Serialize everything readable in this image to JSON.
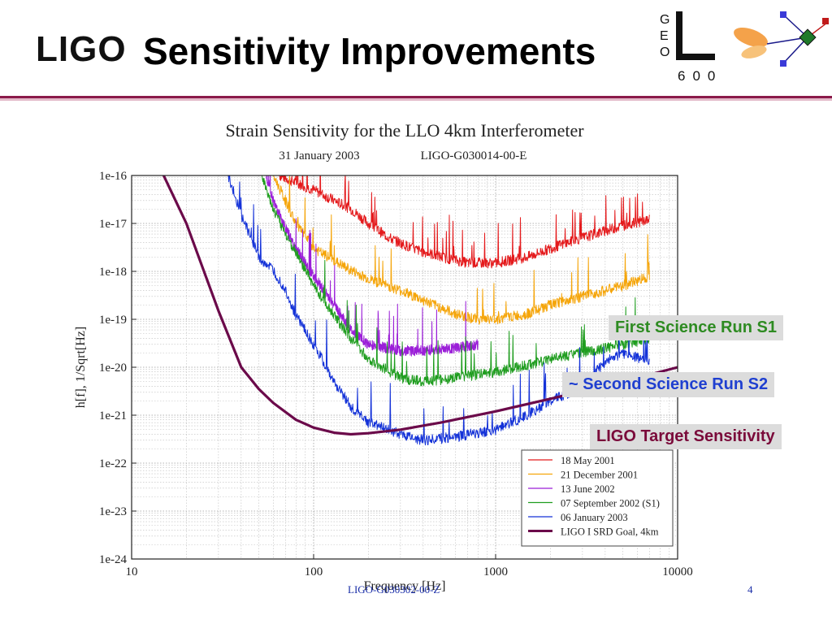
{
  "header": {
    "logo_text": "LIGO",
    "title": "Sensitivity Improvements",
    "geo_letters": [
      "G",
      "E",
      "O"
    ],
    "geo_number": "600"
  },
  "callouts": {
    "s1": "First Science Run S1",
    "s2": "~ Second Science Run S2",
    "target": "LIGO Target Sensitivity"
  },
  "footer": {
    "doc_id": "LIGO-G030302-00-Z",
    "page_number": "4"
  },
  "colors": {
    "header_rule": "#8b1a4a",
    "callout_s1": "#2e8b22",
    "callout_s2": "#1f3fd0",
    "callout_target": "#7a0a3a"
  },
  "chart_data": {
    "type": "line",
    "title": "Strain Sensitivity for the LLO 4km Interferometer",
    "subtitle_date": "31 January 2003",
    "subtitle_doc": "LIGO-G030014-00-E",
    "xlabel": "Frequency [Hz]",
    "ylabel": "h[f], 1/Sqrt[Hz]",
    "x_scale": "log",
    "y_scale": "log",
    "xlim": [
      10,
      10000
    ],
    "ylim": [
      1e-24,
      1e-16
    ],
    "x_ticks": [
      {
        "value": 10,
        "label": "10"
      },
      {
        "value": 100,
        "label": "100"
      },
      {
        "value": 1000,
        "label": "1000"
      },
      {
        "value": 10000,
        "label": "10000"
      }
    ],
    "y_ticks": [
      {
        "value": 1e-16,
        "label": "1e-16"
      },
      {
        "value": 1e-17,
        "label": "1e-17"
      },
      {
        "value": 1e-18,
        "label": "1e-18"
      },
      {
        "value": 1e-19,
        "label": "1e-19"
      },
      {
        "value": 1e-20,
        "label": "1e-20"
      },
      {
        "value": 1e-21,
        "label": "1e-21"
      },
      {
        "value": 1e-22,
        "label": "1e-22"
      },
      {
        "value": 1e-23,
        "label": "1e-23"
      },
      {
        "value": 1e-24,
        "label": "1e-24"
      }
    ],
    "grid": true,
    "legend_position": "bottom-right",
    "series": [
      {
        "name": "18 May 2001",
        "color": "#e41a1c",
        "width": 1,
        "noisy": true,
        "x": [
          65,
          80,
          100,
          130,
          160,
          200,
          260,
          350,
          500,
          700,
          1000,
          1500,
          2000,
          3000,
          4000,
          5000,
          7000
        ],
        "y": [
          1e-16,
          7e-17,
          5e-17,
          3e-17,
          2e-17,
          1e-17,
          5e-18,
          3e-18,
          2e-18,
          1.5e-18,
          1.5e-18,
          2e-18,
          3e-18,
          5e-18,
          7e-18,
          9e-18,
          1.2e-17
        ]
      },
      {
        "name": "21 December 2001",
        "color": "#f5a50a",
        "width": 1,
        "noisy": true,
        "x": [
          60,
          70,
          80,
          100,
          150,
          200,
          300,
          400,
          600,
          800,
          1000,
          1500,
          2000,
          3000,
          5000,
          7000
        ],
        "y": [
          1e-16,
          3e-17,
          1e-17,
          3e-18,
          1.2e-18,
          7e-19,
          4e-19,
          2.5e-19,
          1.3e-19,
          1e-19,
          1e-19,
          1.3e-19,
          2e-19,
          3e-19,
          5e-19,
          8e-19
        ]
      },
      {
        "name": "13 June 2002",
        "color": "#9b1fd8",
        "width": 1,
        "noisy": true,
        "x": [
          55,
          60,
          70,
          80,
          100,
          130,
          160,
          200,
          300,
          400,
          600,
          800
        ],
        "y": [
          1e-16,
          3e-17,
          8e-18,
          3e-18,
          8e-19,
          2e-19,
          6e-20,
          3e-20,
          2.2e-20,
          2.2e-20,
          2.5e-20,
          3e-20
        ]
      },
      {
        "name": "07 September 2002 (S1)",
        "color": "#1f9d1f",
        "width": 1,
        "noisy": true,
        "x": [
          52,
          60,
          70,
          80,
          100,
          130,
          160,
          200,
          300,
          400,
          600,
          1000,
          1500,
          2000,
          3000,
          5000,
          7000
        ],
        "y": [
          1e-16,
          2e-17,
          6e-18,
          2.5e-18,
          5e-19,
          1.2e-19,
          4e-20,
          1.5e-20,
          6e-21,
          5e-21,
          6e-21,
          8e-21,
          1.1e-20,
          1.5e-20,
          2e-20,
          3e-20,
          4e-20
        ]
      },
      {
        "name": "06 January 2003",
        "color": "#1432d8",
        "width": 1,
        "noisy": true,
        "x": [
          34,
          40,
          50,
          60,
          70,
          80,
          100,
          130,
          160,
          200,
          300,
          400,
          600,
          1000,
          1500,
          2000,
          3000,
          4000,
          5000,
          6000,
          7000
        ],
        "y": [
          1e-16,
          1.5e-17,
          2e-18,
          1e-18,
          4e-19,
          1.2e-19,
          3e-20,
          5e-21,
          1.5e-21,
          7e-22,
          4e-22,
          3e-22,
          3.5e-22,
          5e-22,
          1e-21,
          2e-21,
          4e-21,
          1.3e-20,
          2e-20,
          1.6e-20,
          1.4e-20
        ]
      },
      {
        "name": "LIGO I SRD Goal, 4km",
        "color": "#6b0a4a",
        "width": 3.2,
        "noisy": false,
        "x": [
          15,
          20,
          30,
          40,
          50,
          60,
          80,
          100,
          130,
          160,
          200,
          300,
          500,
          1000,
          2000,
          5000,
          10000
        ],
        "y": [
          1e-16,
          1e-17,
          1.5e-19,
          1e-20,
          3.5e-21,
          1.8e-21,
          8e-22,
          5.5e-22,
          4.3e-22,
          4e-22,
          4.2e-22,
          5e-22,
          7e-22,
          1.2e-21,
          2.2e-21,
          5e-21,
          1e-20
        ]
      }
    ]
  }
}
